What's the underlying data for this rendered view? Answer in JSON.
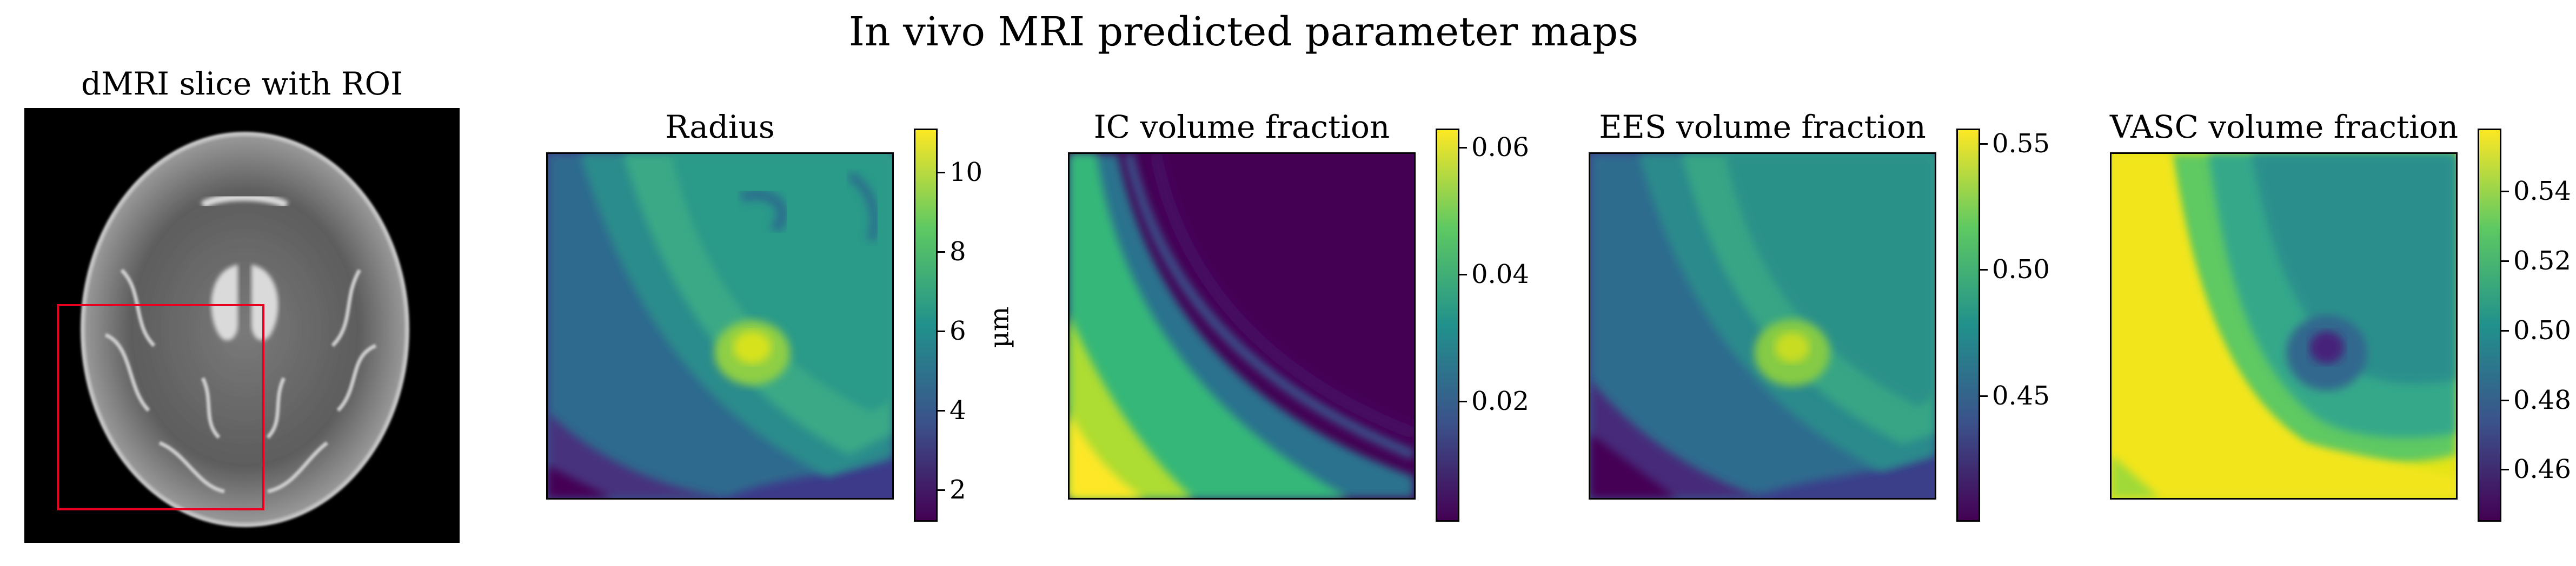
{
  "figure": {
    "title": "In vivo MRI predicted parameter maps"
  },
  "panels": [
    {
      "id": "dmri",
      "title": "dMRI slice with ROI"
    },
    {
      "id": "radius",
      "title": "Radius",
      "colorbar_ticks": [
        "2",
        "4",
        "6",
        "8",
        "10"
      ],
      "tick_values": [
        2,
        4,
        6,
        8,
        10
      ],
      "range": [
        1.2,
        11.1
      ],
      "unit": "µm"
    },
    {
      "id": "ic",
      "title": "IC volume fraction",
      "colorbar_ticks": [
        "0.02",
        "0.04",
        "0.06"
      ],
      "tick_values": [
        0.02,
        0.04,
        0.06
      ],
      "range": [
        0.001,
        0.063
      ]
    },
    {
      "id": "ees",
      "title": "EES volume fraction",
      "colorbar_ticks": [
        "0.45",
        "0.50",
        "0.55"
      ],
      "tick_values": [
        0.45,
        0.5,
        0.55
      ],
      "range": [
        0.4,
        0.556
      ]
    },
    {
      "id": "vasc",
      "title": "VASC volume fraction",
      "colorbar_ticks": [
        "0.46",
        "0.48",
        "0.50",
        "0.52",
        "0.54"
      ],
      "tick_values": [
        0.46,
        0.48,
        0.5,
        0.52,
        0.54
      ],
      "range": [
        0.445,
        0.558
      ]
    }
  ],
  "colors": {
    "roi_box": "#e8001c",
    "colormap": [
      "#440154",
      "#3b528b",
      "#21918c",
      "#5ec962",
      "#fde725"
    ]
  }
}
